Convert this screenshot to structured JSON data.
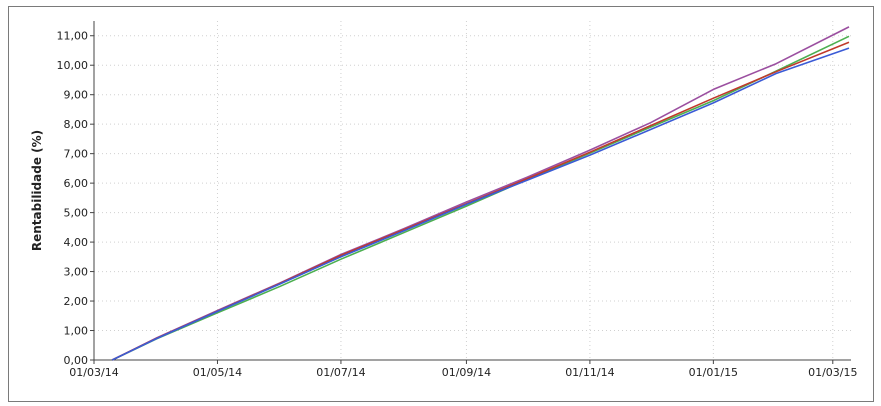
{
  "chart_data": {
    "type": "line",
    "title": "",
    "xlabel": "",
    "ylabel": "Rentabilidade (%)",
    "xlim": [
      "2014-03-01",
      "2015-03-10"
    ],
    "ylim": [
      0,
      11.5
    ],
    "grid": true,
    "legend": "none",
    "x_ticks": [
      "01/03/14",
      "01/05/14",
      "01/07/14",
      "01/09/14",
      "01/11/14",
      "01/01/15",
      "01/03/15"
    ],
    "x_tick_dates": [
      "2014-03-01",
      "2014-05-01",
      "2014-07-01",
      "2014-09-01",
      "2014-11-01",
      "2015-01-01",
      "2015-03-01"
    ],
    "y_ticks": [
      "0,00",
      "1,00",
      "2,00",
      "3,00",
      "4,00",
      "5,00",
      "6,00",
      "7,00",
      "8,00",
      "9,00",
      "10,00",
      "11,00"
    ],
    "y_tick_values": [
      0,
      1,
      2,
      3,
      4,
      5,
      6,
      7,
      8,
      9,
      10,
      11
    ],
    "series": [
      {
        "color": "#9b4fa0",
        "x": [
          "2014-03-10",
          "2014-04-01",
          "2014-05-01",
          "2014-06-01",
          "2014-07-01",
          "2014-08-01",
          "2014-09-01",
          "2014-10-01",
          "2014-11-01",
          "2014-12-01",
          "2015-01-01",
          "2015-02-01",
          "2015-03-09"
        ],
        "values": [
          0,
          0.75,
          1.68,
          2.62,
          3.58,
          4.45,
          5.36,
          6.2,
          7.12,
          8.05,
          9.18,
          10.05,
          11.3
        ]
      },
      {
        "color": "#4caf50",
        "x": [
          "2014-03-10",
          "2014-04-01",
          "2014-05-01",
          "2014-06-01",
          "2014-07-01",
          "2014-08-01",
          "2014-09-01",
          "2014-10-01",
          "2014-11-01",
          "2014-12-01",
          "2015-01-01",
          "2015-02-01",
          "2015-03-09"
        ],
        "values": [
          0,
          0.72,
          1.6,
          2.5,
          3.42,
          4.32,
          5.22,
          6.12,
          7.02,
          7.9,
          8.8,
          9.8,
          10.98
        ]
      },
      {
        "color": "#c0392b",
        "x": [
          "2014-03-10",
          "2014-04-01",
          "2014-05-01",
          "2014-06-01",
          "2014-07-01",
          "2014-08-01",
          "2014-09-01",
          "2014-10-01",
          "2014-11-01",
          "2014-12-01",
          "2015-01-01",
          "2015-02-01",
          "2015-03-09"
        ],
        "values": [
          0,
          0.74,
          1.66,
          2.6,
          3.55,
          4.42,
          5.3,
          6.15,
          7.05,
          7.95,
          8.88,
          9.78,
          10.78
        ]
      },
      {
        "color": "#3b5bd6",
        "x": [
          "2014-03-10",
          "2014-04-01",
          "2014-05-01",
          "2014-06-01",
          "2014-07-01",
          "2014-08-01",
          "2014-09-01",
          "2014-10-01",
          "2014-11-01",
          "2014-12-01",
          "2015-01-01",
          "2015-02-01",
          "2015-03-09"
        ],
        "values": [
          0,
          0.73,
          1.65,
          2.58,
          3.5,
          4.38,
          5.28,
          6.1,
          6.95,
          7.82,
          8.72,
          9.72,
          10.58
        ]
      }
    ]
  }
}
